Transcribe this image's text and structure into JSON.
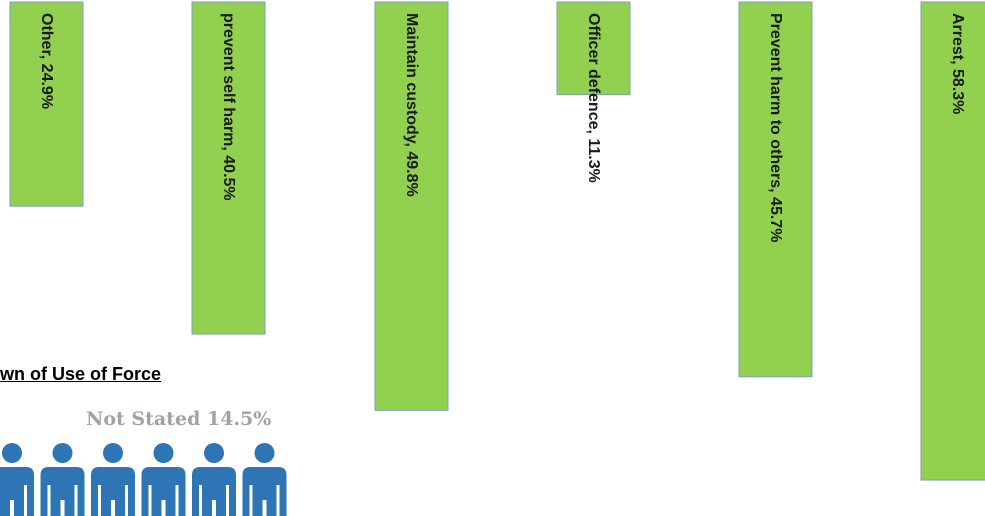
{
  "chart_data": {
    "type": "bar",
    "orientation": "vertical, bars hang from top edge",
    "categories": [
      "Other",
      "prevent self harm",
      "Maintain custody",
      "Officer defence",
      "Prevent harm to others",
      "Arrest"
    ],
    "values": [
      24.9,
      40.5,
      49.8,
      11.3,
      45.7,
      58.3
    ],
    "labels": [
      "Other, 24.9%",
      "prevent self harm, 40.5%",
      "Maintain custody, 49.8%",
      "Officer defence, 11.3%",
      "Prevent harm to others, 45.7%",
      "Arrest, 58.3%"
    ],
    "unit": "%",
    "bar_color": "#92d050",
    "bar_border_color": "#7f9fbf",
    "label_rotation": "90deg, reading top-to-bottom"
  },
  "section_title": "wn of Use of Force",
  "not_stated": {
    "label": "Not Stated",
    "value": "14.5%",
    "text": "Not Stated  14.5%",
    "color": "#9da3a8"
  },
  "people_icons": {
    "icon": "person-icon",
    "count": 6,
    "color": "#2e75b6"
  }
}
